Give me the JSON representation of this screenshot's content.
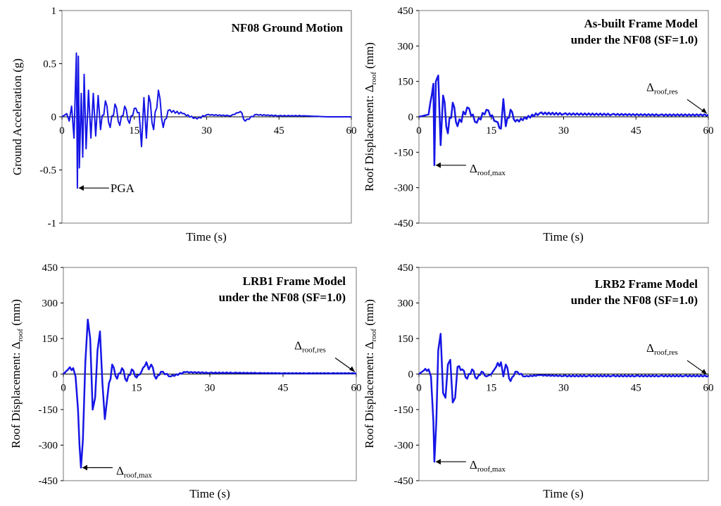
{
  "series_color": "#1515e6",
  "chart_data": [
    {
      "type": "line",
      "title": [
        "NF08 Ground Motion"
      ],
      "xlabel": "Time (s)",
      "ylabel": "Ground Acceleration (g)",
      "xlim": [
        0,
        60
      ],
      "ylim": [
        -1,
        1
      ],
      "xticks": [
        "0",
        "15",
        "30",
        "45",
        "60"
      ],
      "yticks": [
        "-1",
        "-0.5",
        "0",
        "0.5",
        "1"
      ],
      "annotation": {
        "text": "PGA",
        "x": 3.2,
        "y": -0.67
      },
      "series": [
        {
          "name": "NF08 ground acceleration",
          "x": [
            0,
            1,
            1.5,
            2,
            2.5,
            3,
            3.2,
            3.4,
            3.6,
            4,
            4.3,
            4.6,
            5,
            5.5,
            6,
            6.5,
            7,
            7.5,
            8,
            9,
            10,
            11,
            12,
            13,
            14,
            15,
            16,
            16.5,
            17,
            17.5,
            18,
            19,
            20,
            21,
            22,
            25,
            28,
            30,
            35,
            37,
            38,
            40,
            45,
            50,
            55,
            60
          ],
          "y": [
            0,
            0.03,
            -0.04,
            0.1,
            -0.2,
            0.6,
            -0.67,
            0.57,
            -0.48,
            0.22,
            -0.38,
            0.4,
            -0.3,
            0.25,
            -0.2,
            0.22,
            -0.18,
            0.2,
            -0.12,
            0.15,
            -0.1,
            0.12,
            -0.08,
            0.1,
            -0.06,
            0.08,
            0.04,
            -0.28,
            0.18,
            -0.2,
            0.2,
            -0.12,
            0.25,
            -0.1,
            0.06,
            0.03,
            -0.02,
            0.02,
            0.01,
            0.05,
            -0.04,
            0.02,
            0.01,
            0.01,
            0.0,
            0.0
          ]
        }
      ]
    },
    {
      "type": "line",
      "title": [
        "As-built Frame Model",
        "under the NF08 (SF=1.0)"
      ],
      "xlabel": "Time (s)",
      "ylabel_main": "Roof Displacement: Δ",
      "ylabel_sub": "roof",
      "ylabel_tail": " (mm)",
      "xlim": [
        0,
        60
      ],
      "ylim": [
        -450,
        450
      ],
      "xticks": [
        "0",
        "15",
        "30",
        "45",
        "60"
      ],
      "yticks": [
        "-450",
        "-300",
        "-150",
        "0",
        "150",
        "300",
        "450"
      ],
      "ann_max": {
        "main": "Δ",
        "sub": "roof,max",
        "x": 3.2,
        "y": -205
      },
      "ann_res": {
        "main": "Δ",
        "sub": "roof,res",
        "x": 60,
        "y": 8
      },
      "series": [
        {
          "name": "Roof displacement",
          "x": [
            0,
            2,
            3,
            3.2,
            3.5,
            4,
            4.5,
            5,
            6,
            7,
            8,
            10,
            12,
            14,
            16,
            17,
            17.5,
            18,
            19,
            20,
            25,
            30,
            40,
            50,
            60
          ],
          "y": [
            0,
            10,
            140,
            -205,
            150,
            175,
            -120,
            90,
            -70,
            60,
            -40,
            40,
            -25,
            30,
            -20,
            -50,
            75,
            -40,
            30,
            -20,
            15,
            12,
            10,
            8,
            8
          ]
        }
      ]
    },
    {
      "type": "line",
      "title": [
        "LRB1 Frame Model",
        "under the NF08 (SF=1.0)"
      ],
      "xlabel": "Time (s)",
      "ylabel_main": "Roof Displacement: Δ",
      "ylabel_sub": "roof",
      "ylabel_tail": " (mm)",
      "xlim": [
        0,
        60
      ],
      "ylim": [
        -450,
        450
      ],
      "xticks": [
        "0",
        "15",
        "30",
        "45",
        "60"
      ],
      "yticks": [
        "-450",
        "-300",
        "-150",
        "0",
        "150",
        "300",
        "450"
      ],
      "ann_max": {
        "main": "Δ",
        "sub": "roof,max",
        "x": 3.6,
        "y": -395
      },
      "ann_res": {
        "main": "Δ",
        "sub": "roof,res",
        "x": 60,
        "y": 3
      },
      "series": [
        {
          "name": "Roof displacement",
          "x": [
            0,
            1,
            2,
            2.5,
            3,
            3.3,
            3.6,
            4,
            4.5,
            5,
            5.5,
            6,
            6.5,
            7,
            7.5,
            8,
            8.5,
            9,
            10,
            11,
            12,
            13,
            14,
            15,
            16,
            17,
            17.5,
            18,
            19,
            20,
            22,
            25,
            30,
            35,
            40,
            45,
            50,
            55,
            60
          ],
          "y": [
            0,
            20,
            25,
            -10,
            -150,
            -300,
            -395,
            -280,
            50,
            230,
            150,
            -150,
            -100,
            100,
            180,
            -40,
            -190,
            -100,
            40,
            -20,
            25,
            -30,
            20,
            -15,
            10,
            50,
            20,
            40,
            -20,
            10,
            -10,
            8,
            5,
            5,
            4,
            3,
            3,
            3,
            3
          ]
        }
      ]
    },
    {
      "type": "line",
      "title": [
        "LRB2 Frame Model",
        "under the NF08 (SF=1.0)"
      ],
      "xlabel": "Time (s)",
      "ylabel_main": "Roof Displacement: Δ",
      "ylabel_sub": "roof",
      "ylabel_tail": " (mm)",
      "xlim": [
        0,
        60
      ],
      "ylim": [
        -450,
        450
      ],
      "xticks": [
        "0",
        "15",
        "30",
        "45",
        "60"
      ],
      "yticks": [
        "-450",
        "-300",
        "-150",
        "0",
        "150",
        "300",
        "450"
      ],
      "ann_max": {
        "main": "Δ",
        "sub": "roof,max",
        "x": 3.2,
        "y": -370
      },
      "ann_res": {
        "main": "Δ",
        "sub": "roof,res",
        "x": 60,
        "y": -8
      },
      "series": [
        {
          "name": "Roof displacement",
          "x": [
            0,
            1,
            2,
            2.5,
            3,
            3.2,
            3.6,
            4,
            4.5,
            5,
            5.5,
            6,
            6.5,
            7,
            7.5,
            8,
            9,
            10,
            11,
            12,
            13,
            14,
            15,
            16,
            17,
            17.5,
            18,
            19,
            20,
            22,
            25,
            30,
            35,
            40,
            45,
            50,
            55,
            60
          ],
          "y": [
            0,
            15,
            20,
            -10,
            -200,
            -370,
            -200,
            100,
            170,
            -80,
            -100,
            40,
            60,
            -120,
            -100,
            30,
            20,
            -20,
            20,
            -20,
            10,
            -10,
            0,
            30,
            50,
            -10,
            40,
            -30,
            10,
            -10,
            -5,
            -8,
            -8,
            -8,
            -8,
            -8,
            -8,
            -8
          ]
        }
      ]
    }
  ]
}
